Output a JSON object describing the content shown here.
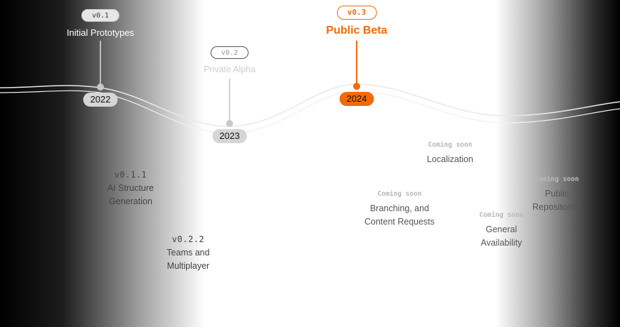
{
  "colors": {
    "accent": "#f26a0a",
    "muted": "#c8c8c8",
    "text_dark": "#3a3a3a",
    "soon": "#b5b5b5"
  },
  "milestones": [
    {
      "version": "v0.1",
      "title": "Initial Prototypes",
      "year": "2022"
    },
    {
      "version": "v0.2",
      "title": "Private Alpha",
      "year": "2023"
    },
    {
      "version": "v0.3",
      "title": "Public Beta",
      "year": "2024"
    }
  ],
  "features": [
    {
      "version": "v0.1.1",
      "lines": [
        "AI Structure",
        "Generation"
      ]
    },
    {
      "version": "v0.2.2",
      "lines": [
        "Teams and",
        "Multiplayer"
      ]
    },
    {
      "tag": "Coming soon",
      "lines": [
        "Localization"
      ]
    },
    {
      "tag": "Coming soon",
      "lines": [
        "Branching, and",
        "Content Requests"
      ]
    },
    {
      "tag": "Coming soon",
      "lines": [
        "General",
        "Availability"
      ]
    },
    {
      "tag": "Coming soon",
      "lines": [
        "Public",
        "Repositories"
      ]
    }
  ]
}
